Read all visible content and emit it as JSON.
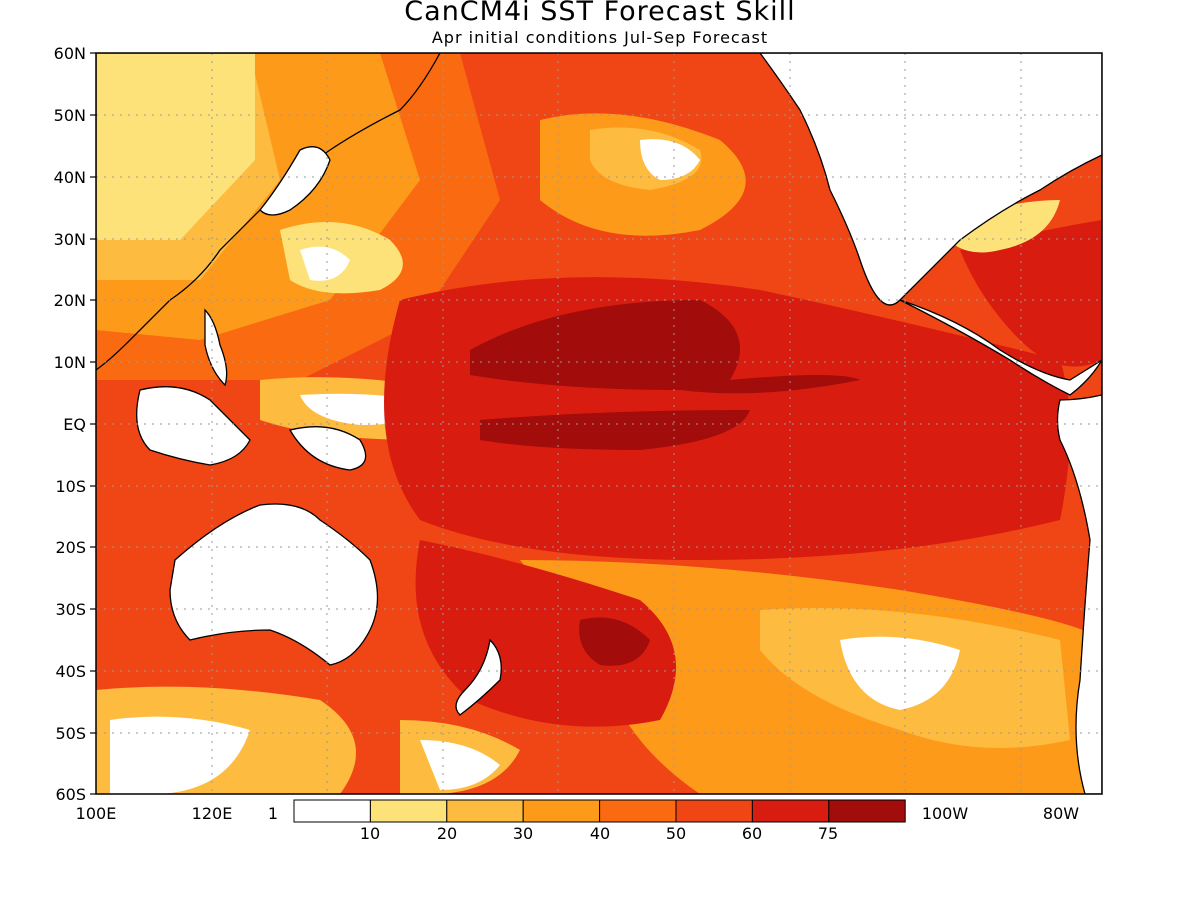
{
  "title": "CanCM4i SST Forecast Skill",
  "subtitle": "Apr initial conditions  Jul-Sep Forecast",
  "lat_labels": [
    "60N",
    "50N",
    "40N",
    "30N",
    "20N",
    "10N",
    "EQ",
    "10S",
    "20S",
    "30S",
    "40S",
    "50S",
    "60S"
  ],
  "lon_labels": [
    "100E",
    "120E",
    "1",
    "100W",
    "80W"
  ],
  "colorbar": {
    "labels": [
      "10",
      "20",
      "30",
      "40",
      "50",
      "60",
      "75"
    ],
    "colors": [
      "#ffffff",
      "#fde27a",
      "#fdbb40",
      "#fd9a1a",
      "#fa6a10",
      "#f04515",
      "#d81c10",
      "#a20c0a"
    ]
  },
  "colors": {
    "land": "#ffffff",
    "coast": "#000000"
  }
}
